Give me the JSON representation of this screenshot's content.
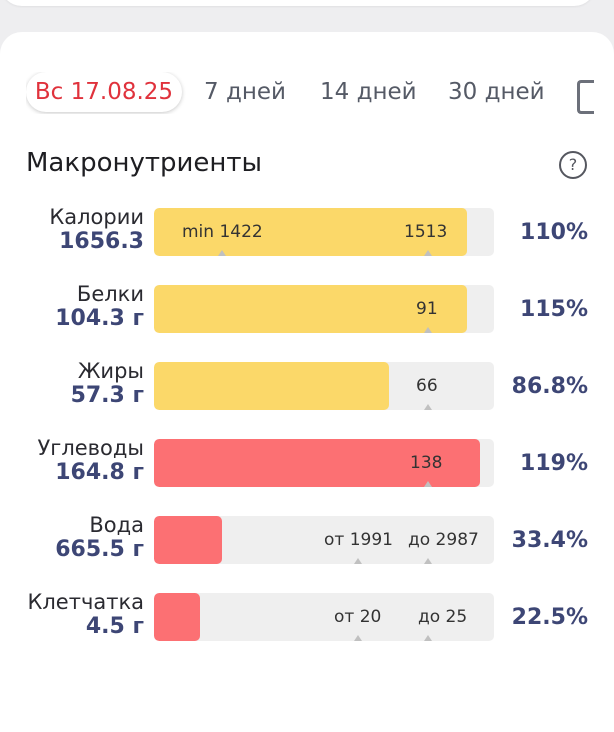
{
  "tabs": [
    {
      "label": "Вс 17.08.25",
      "active": true
    },
    {
      "label": "7 дней",
      "active": false
    },
    {
      "label": "14 дней",
      "active": false
    },
    {
      "label": "30 дней",
      "active": false
    }
  ],
  "title": "Макронутриенты",
  "help_icon": "?",
  "colors": {
    "accent": "#e0323c",
    "yellow": "#fbd869",
    "red": "#fc7073",
    "value_text": "#3d4675"
  },
  "rows": [
    {
      "name": "Калории",
      "amount": "1656.3",
      "percent": "110%",
      "fill_fraction": 0.92,
      "color": "yellow",
      "marks": [
        {
          "label": "min 1422"
        },
        {
          "label": "1513"
        }
      ]
    },
    {
      "name": "Белки",
      "amount": "104.3 г",
      "percent": "115%",
      "fill_fraction": 0.92,
      "color": "yellow",
      "marks": [
        {
          "label": "91"
        }
      ]
    },
    {
      "name": "Жиры",
      "amount": "57.3 г",
      "percent": "86.8%",
      "fill_fraction": 0.69,
      "color": "yellow",
      "marks": [
        {
          "label": "66"
        }
      ]
    },
    {
      "name": "Углеводы",
      "amount": "164.8 г",
      "percent": "119%",
      "fill_fraction": 0.96,
      "color": "red",
      "marks": [
        {
          "label": "138"
        }
      ]
    },
    {
      "name": "Вода",
      "amount": "665.5 г",
      "percent": "33.4%",
      "fill_fraction": 0.2,
      "color": "red",
      "marks": [
        {
          "label": "от 1991"
        },
        {
          "label": "до 2987"
        }
      ]
    },
    {
      "name": "Клетчатка",
      "amount": "4.5 г",
      "percent": "22.5%",
      "fill_fraction": 0.135,
      "color": "red",
      "marks": [
        {
          "label": "от 20"
        },
        {
          "label": "до 25"
        }
      ]
    }
  ]
}
